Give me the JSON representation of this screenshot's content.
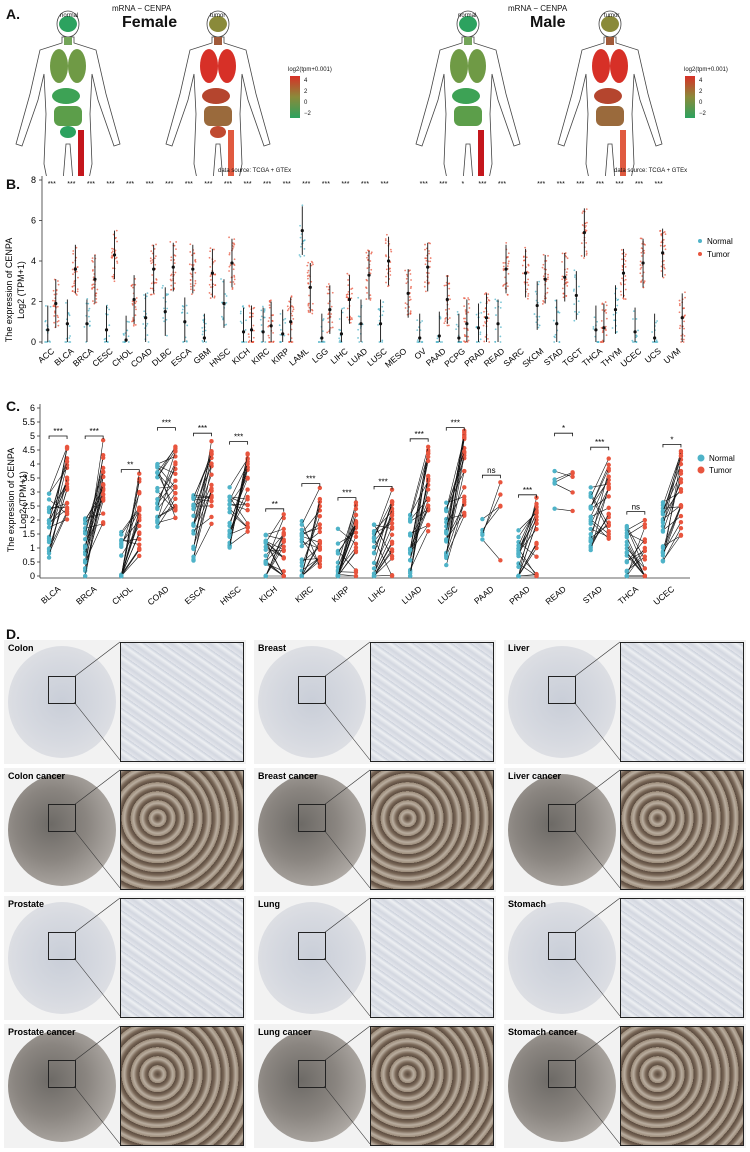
{
  "panelA": {
    "label": "A.",
    "female": {
      "mrna_title": "mRNA − CENPA",
      "sex_title": "Female",
      "normal_label": "normal",
      "tumor_label": "tumor"
    },
    "male": {
      "mrna_title": "mRNA − CENPA",
      "sex_title": "Male",
      "normal_label": "normal",
      "tumor_label": "tumor"
    },
    "legend_title": "log2(tpm+0.001)",
    "legend_ticks": [
      "4",
      "2",
      "0",
      "−2"
    ],
    "source": "data source: TCGA + GTEx",
    "colors": {
      "high": "#d73027",
      "mid": "#8a8a3a",
      "low": "#2ca25f"
    }
  },
  "panelB": {
    "label": "B.",
    "ylabel_line1": "The expression of CENPA",
    "ylabel_line2": "Log2 (TPM+1)",
    "legend": [
      "Normal",
      "Tumor"
    ]
  },
  "panelC": {
    "label": "C.",
    "ylabel_line1": "The expression of CENPA",
    "ylabel_line2": "Log2 (TPM+1)",
    "legend": [
      "Normal",
      "Tumor"
    ]
  },
  "panelD": {
    "label": "D.",
    "tiles": [
      {
        "name": "Colon",
        "kind": "normal"
      },
      {
        "name": "Breast",
        "kind": "normal"
      },
      {
        "name": "Liver",
        "kind": "normal"
      },
      {
        "name": "Colon cancer",
        "kind": "cancer"
      },
      {
        "name": "Breast cancer",
        "kind": "cancer"
      },
      {
        "name": "Liver cancer",
        "kind": "cancer"
      },
      {
        "name": "Prostate",
        "kind": "normal"
      },
      {
        "name": "Lung",
        "kind": "normal"
      },
      {
        "name": "Stomach",
        "kind": "normal"
      },
      {
        "name": "Prostate cancer",
        "kind": "cancer"
      },
      {
        "name": "Lung cancer",
        "kind": "cancer"
      },
      {
        "name": "Stomach cancer",
        "kind": "cancer"
      }
    ]
  },
  "chart_data": [
    {
      "type": "scatter",
      "panel": "B",
      "ylabel": "The expression of CENPA Log2 (TPM+1)",
      "ylim": [
        0,
        8
      ],
      "yticks": [
        0,
        2,
        4,
        6,
        8
      ],
      "legend_placement": "right",
      "series_colors": {
        "Normal": "#4fb3c8",
        "Tumor": "#e8553e"
      },
      "categories": [
        "ACC",
        "BLCA",
        "BRCA",
        "CESC",
        "CHOL",
        "COAD",
        "DLBC",
        "ESCA",
        "GBM",
        "HNSC",
        "KICH",
        "KIRC",
        "KIRP",
        "LAML",
        "LGG",
        "LIHC",
        "LUAD",
        "LUSC",
        "MESO",
        "OV",
        "PAAD",
        "PCPG",
        "PRAD",
        "READ",
        "SARC",
        "SKCM",
        "STAD",
        "TGCT",
        "THCA",
        "THYM",
        "UCEC",
        "UCS",
        "UVM"
      ],
      "significance": [
        "***",
        "***",
        "***",
        "***",
        "***",
        "***",
        "***",
        "***",
        "***",
        "***",
        "***",
        "***",
        "***",
        "***",
        "***",
        "***",
        "***",
        "***",
        "",
        "***",
        "***",
        "*",
        "***",
        "***",
        "",
        "***",
        "***",
        "***",
        "***",
        "***",
        "***",
        "***",
        ""
      ],
      "series": [
        {
          "name": "Normal",
          "values": [
            0.6,
            0.9,
            0.9,
            0.6,
            0.1,
            1.2,
            1.5,
            1.0,
            0.2,
            1.9,
            0.5,
            0.5,
            0.4,
            5.5,
            0.2,
            0.4,
            0.9,
            0.9,
            null,
            0.2,
            0.3,
            0.2,
            0.7,
            0.9,
            null,
            1.8,
            0.9,
            2.3,
            0.6,
            1.6,
            0.5,
            0.2,
            null
          ]
        },
        {
          "name": "Tumor",
          "values": [
            1.9,
            3.6,
            3.1,
            4.3,
            2.1,
            3.6,
            3.7,
            3.6,
            3.4,
            3.9,
            0.6,
            0.8,
            1.0,
            2.7,
            1.6,
            2.1,
            3.3,
            4.0,
            2.4,
            3.7,
            2.1,
            0.9,
            1.2,
            3.6,
            3.4,
            3.1,
            3.2,
            5.4,
            0.7,
            3.4,
            3.9,
            4.4,
            1.2
          ]
        }
      ]
    },
    {
      "type": "line",
      "panel": "C",
      "ylabel": "The expression of CENPA Log2 (TPM+1)",
      "ylim": [
        0,
        6
      ],
      "yticks": [
        0,
        0.5,
        1,
        1.5,
        2,
        2.5,
        3,
        3.5,
        4,
        4.5,
        5,
        5.5,
        6
      ],
      "legend_placement": "right",
      "series_colors": {
        "Normal": "#4fb3c8",
        "Tumor": "#e8553e"
      },
      "categories": [
        "BLCA",
        "BRCA",
        "CHOL",
        "COAD",
        "ESCA",
        "HNSC",
        "KICH",
        "KIRC",
        "KIRP",
        "LIHC",
        "LUAD",
        "LUSC",
        "PAAD",
        "PRAD",
        "READ",
        "STAD",
        "THCA",
        "UCEC"
      ],
      "significance": [
        "***",
        "***",
        "**",
        "***",
        "***",
        "***",
        "**",
        "***",
        "***",
        "***",
        "***",
        "***",
        "ns",
        "***",
        "*",
        "***",
        "ns",
        "*"
      ],
      "series": [
        {
          "name": "Normal",
          "values": [
            1.8,
            1.0,
            0.5,
            2.8,
            1.7,
            2.2,
            0.4,
            0.8,
            0.5,
            0.7,
            1.0,
            1.5,
            1.7,
            0.6,
            3.1,
            2.0,
            0.6,
            1.5
          ]
        },
        {
          "name": "Tumor",
          "values": [
            3.3,
            3.3,
            2.1,
            3.6,
            3.4,
            3.1,
            0.7,
            1.6,
            1.1,
            1.5,
            3.2,
            3.6,
            1.9,
            1.2,
            3.4,
            2.9,
            0.5,
            3.0
          ]
        }
      ]
    }
  ]
}
